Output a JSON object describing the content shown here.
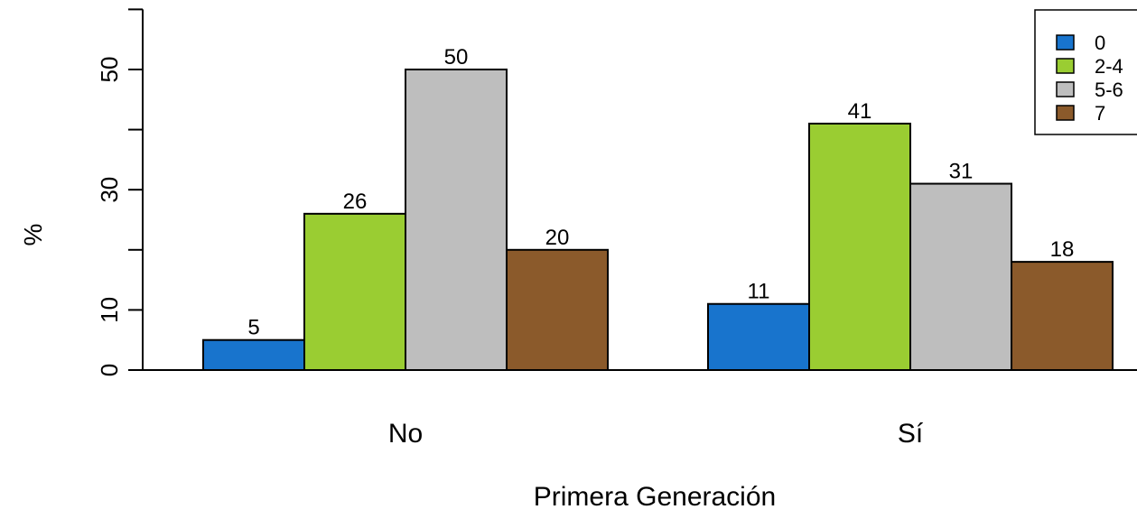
{
  "chart_data": {
    "type": "bar",
    "title": "",
    "xlabel": "Primera Generación",
    "ylabel": "%",
    "categories": [
      "No",
      "Sí"
    ],
    "ylim": [
      0,
      60
    ],
    "y_ticks": [
      "0",
      "10",
      "30",
      "50"
    ],
    "grid": false,
    "legend_position": "top-right",
    "series": [
      {
        "name": "0",
        "color": "#1874CD",
        "values": [
          5,
          11
        ],
        "labels": [
          "5",
          "11"
        ]
      },
      {
        "name": "2-4",
        "color": "#9ACD32",
        "values": [
          26,
          41
        ],
        "labels": [
          "26",
          "41"
        ]
      },
      {
        "name": "5-6",
        "color": "#BEBEBE",
        "values": [
          50,
          31
        ],
        "labels": [
          "50",
          "31"
        ]
      },
      {
        "name": "7",
        "color": "#8B5A2B",
        "values": [
          20,
          18
        ],
        "labels": [
          "20",
          "18"
        ]
      }
    ]
  }
}
